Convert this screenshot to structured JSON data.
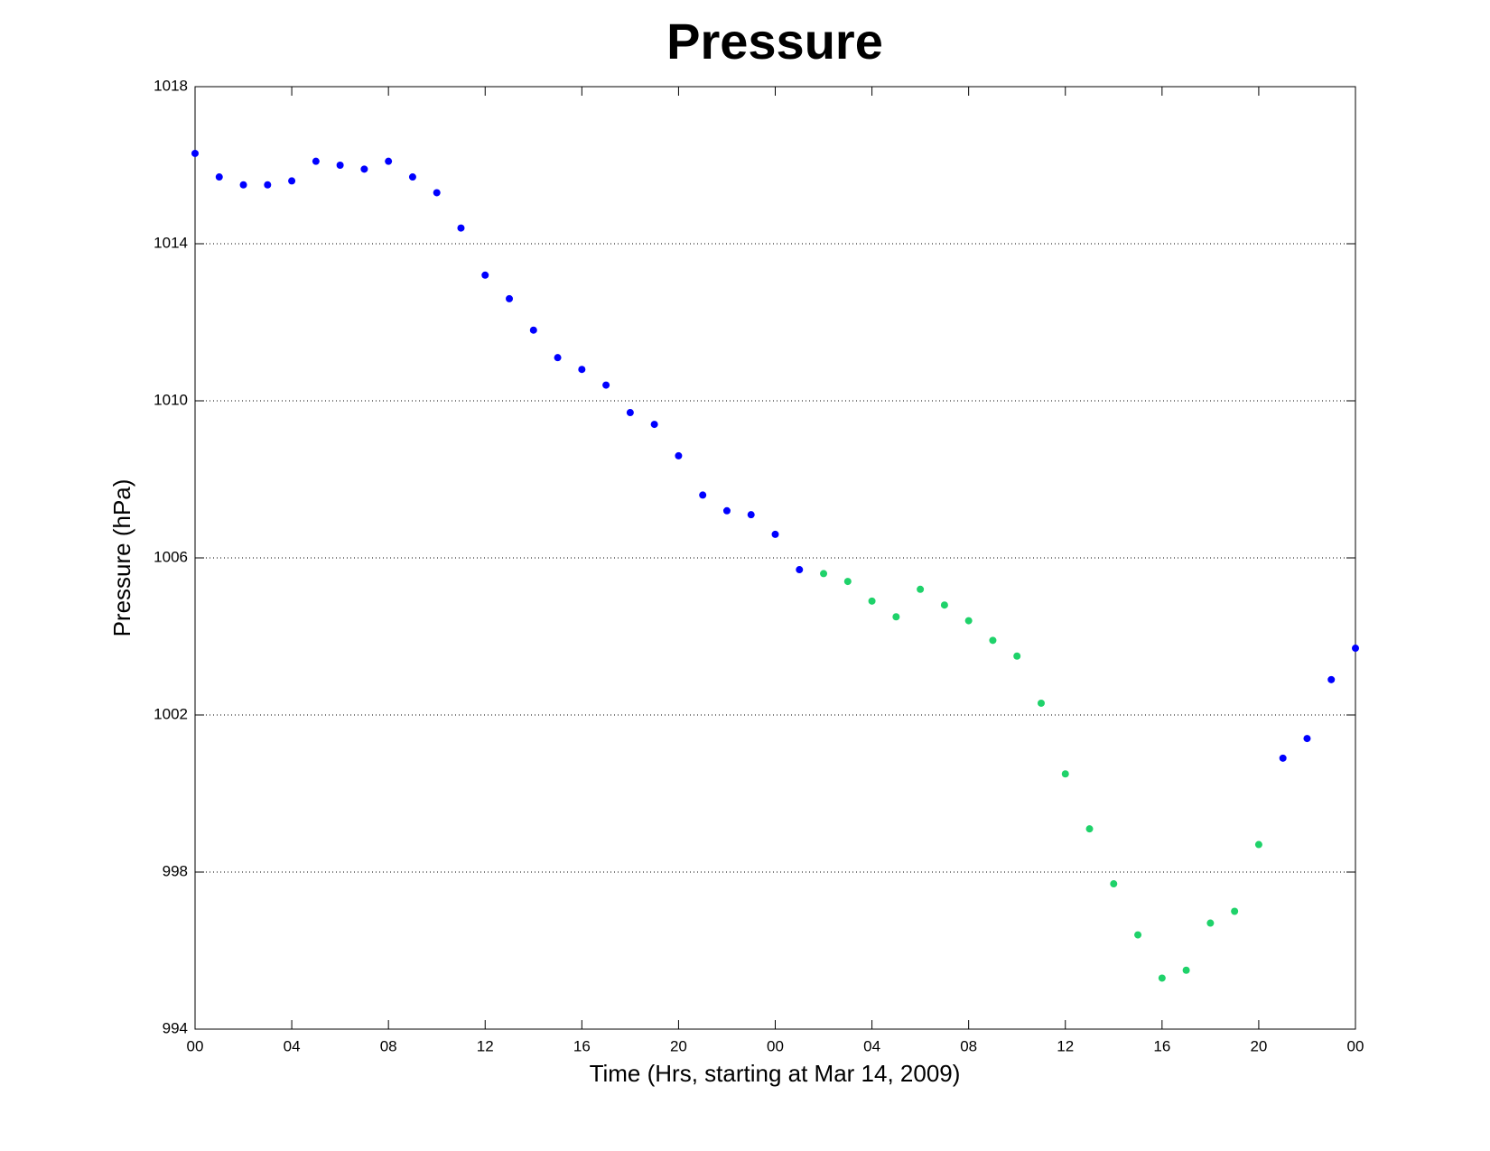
{
  "chart_data": {
    "type": "scatter",
    "title": "Pressure",
    "x_label": "Time (Hrs, starting at Mar 14, 2009)",
    "y_label": "Pressure (hPa)",
    "xlim": [
      0,
      48
    ],
    "xticks": [
      {
        "value": 0,
        "label": "00"
      },
      {
        "value": 4,
        "label": "04"
      },
      {
        "value": 8,
        "label": "08"
      },
      {
        "value": 12,
        "label": "12"
      },
      {
        "value": 16,
        "label": "16"
      },
      {
        "value": 20,
        "label": "20"
      },
      {
        "value": 24,
        "label": "00"
      },
      {
        "value": 28,
        "label": "04"
      },
      {
        "value": 32,
        "label": "08"
      },
      {
        "value": 36,
        "label": "12"
      },
      {
        "value": 40,
        "label": "16"
      },
      {
        "value": 44,
        "label": "20"
      },
      {
        "value": 48,
        "label": "00"
      }
    ],
    "ylim": [
      994,
      1018
    ],
    "yticks": [
      994,
      998,
      1002,
      1006,
      1010,
      1014,
      1018
    ],
    "grid": true,
    "series": [
      {
        "color": "#0000ff",
        "x": [
          0,
          1,
          2,
          3,
          4,
          5,
          6,
          7,
          8,
          9,
          10,
          11,
          12,
          13,
          14,
          15,
          16,
          17,
          18,
          19,
          20,
          21,
          22,
          23,
          24,
          25,
          45,
          46,
          47,
          48
        ],
        "values": [
          1016.3,
          1015.7,
          1015.5,
          1015.5,
          1015.6,
          1016.1,
          1016.0,
          1015.9,
          1016.1,
          1015.7,
          1015.3,
          1014.4,
          1013.2,
          1012.6,
          1011.8,
          1011.1,
          1010.8,
          1010.4,
          1009.7,
          1009.4,
          1008.6,
          1007.6,
          1007.2,
          1007.1,
          1006.6,
          1005.7,
          1000.9,
          1001.4,
          1002.9,
          1003.7
        ]
      },
      {
        "color": "#1fd26a",
        "x": [
          26,
          27,
          28,
          29,
          30,
          31,
          32,
          33,
          34,
          35,
          36,
          37,
          38,
          39,
          40,
          41,
          42,
          43,
          44
        ],
        "values": [
          1005.6,
          1005.4,
          1004.9,
          1004.5,
          1005.2,
          1004.8,
          1004.4,
          1003.9,
          1003.5,
          1002.3,
          1000.5,
          999.1,
          997.7,
          996.4,
          995.3,
          995.5,
          996.7,
          997.0,
          998.7
        ]
      }
    ]
  }
}
